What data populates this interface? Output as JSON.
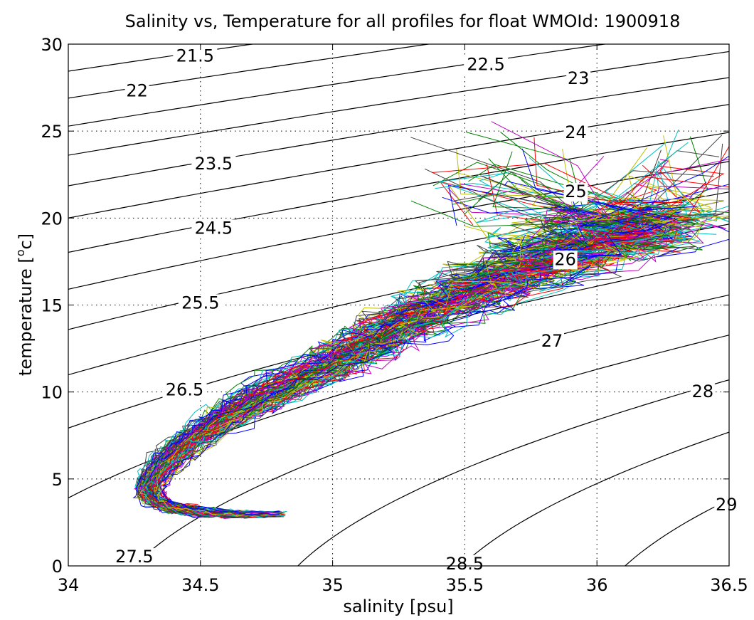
{
  "chart_data": {
    "type": "line",
    "title": "Salinity vs, Temperature for all profiles for float WMOId: 1900918",
    "xlabel": "salinity [psu]",
    "ylabel_main": "temperature [",
    "ylabel_sup": "o",
    "ylabel_end": "c]",
    "xlim": [
      34,
      36.5
    ],
    "ylim": [
      0,
      30
    ],
    "xticks": [
      34,
      34.5,
      35,
      35.5,
      36,
      36.5
    ],
    "xtick_labels": [
      "34",
      "34.5",
      "35",
      "35.5",
      "36",
      "36.5"
    ],
    "yticks": [
      0,
      5,
      10,
      15,
      20,
      25,
      30
    ],
    "ytick_labels": [
      "0",
      "5",
      "10",
      "15",
      "20",
      "25",
      "30"
    ],
    "grid": true,
    "density_contours": [
      21.5,
      22,
      22.5,
      23,
      23.5,
      24,
      24.5,
      25,
      25.5,
      26,
      26.5,
      27,
      27.5,
      28,
      28.5,
      29
    ],
    "contour_labels": [
      {
        "text": "21.5",
        "s": 34.48,
        "t": 29.0
      },
      {
        "text": "22",
        "s": 34.26,
        "t": 27.0
      },
      {
        "text": "22.5",
        "s": 35.58,
        "t": 28.5
      },
      {
        "text": "23",
        "s": 35.93,
        "t": 27.7
      },
      {
        "text": "23.5",
        "s": 34.55,
        "t": 22.8
      },
      {
        "text": "24",
        "s": 35.92,
        "t": 24.6
      },
      {
        "text": "24.5",
        "s": 34.55,
        "t": 19.1
      },
      {
        "text": "25",
        "s": 35.92,
        "t": 21.2
      },
      {
        "text": "25.5",
        "s": 34.5,
        "t": 14.8
      },
      {
        "text": "26",
        "s": 35.88,
        "t": 17.3
      },
      {
        "text": "26.5",
        "s": 34.44,
        "t": 9.8
      },
      {
        "text": "27",
        "s": 35.83,
        "t": 12.6
      },
      {
        "text": "27.5",
        "s": 34.25,
        "t": 0.2
      },
      {
        "text": "28",
        "s": 36.4,
        "t": 9.7
      },
      {
        "text": "28.5",
        "s": 35.5,
        "t": -0.2
      },
      {
        "text": "29",
        "s": 36.49,
        "t": 3.2
      }
    ],
    "mean_profile": {
      "salinity": [
        34.8,
        34.7,
        34.6,
        34.5,
        34.4,
        34.33,
        34.3,
        34.32,
        34.36,
        34.42,
        34.5,
        34.6,
        34.72,
        34.85,
        35.0,
        35.12,
        35.22,
        35.35,
        35.5,
        35.65,
        35.8,
        35.95,
        36.05,
        36.15
      ],
      "temperature": [
        3.0,
        2.95,
        3.0,
        3.1,
        3.3,
        3.7,
        4.3,
        5.0,
        5.8,
        6.7,
        7.6,
        8.6,
        9.6,
        10.6,
        11.6,
        12.6,
        13.5,
        14.5,
        15.5,
        16.5,
        17.4,
        18.3,
        19.2,
        20.0
      ]
    },
    "series_count": 120,
    "series_colors": [
      "#0000ff",
      "#008000",
      "#ff0000",
      "#00bfbf",
      "#bf00bf",
      "#bfbf00",
      "#404040"
    ]
  }
}
